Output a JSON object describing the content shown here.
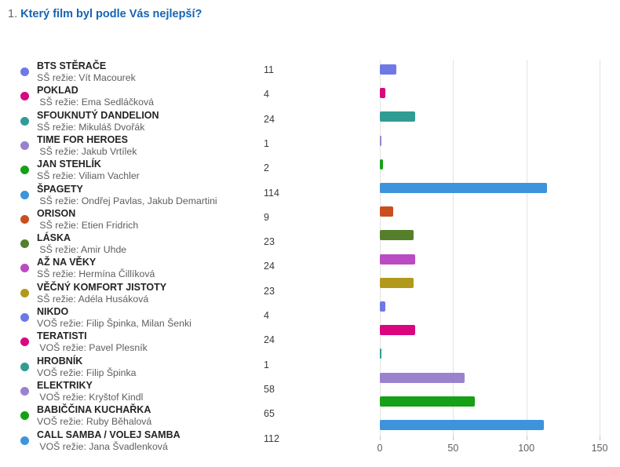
{
  "question": {
    "number": "1. ",
    "text": "Který film byl podle Vás nejlepší?"
  },
  "films": [
    {
      "title": "BTS STĚRAČE",
      "subtitle": "SŠ režie: Vít Macourek",
      "count": "11",
      "color": "#6E79E6"
    },
    {
      "title": "POKLAD",
      "subtitle": " SŠ režie: Ema Sedláčková",
      "count": "4",
      "color": "#D9067F"
    },
    {
      "title": "SFOUKNUTÝ DANDELION",
      "subtitle": "SŠ režie: Mikuláš Dvořák",
      "count": "24",
      "color": "#319C94"
    },
    {
      "title": "TIME FOR HEROES",
      "subtitle": " SŠ režie: Jakub Vrtílek",
      "count": "1",
      "color": "#9B82CE"
    },
    {
      "title": "JAN STEHLÍK",
      "subtitle": "SŠ režie: Viliam Vachler",
      "count": "2",
      "color": "#16A016"
    },
    {
      "title": "ŠPAGETY",
      "subtitle": " SŠ režie: Ondřej Pavlas, Jakub Demartini",
      "count": "114",
      "color": "#3E94DC"
    },
    {
      "title": "ORISON",
      "subtitle": " SŠ režie: Etien Fridrich",
      "count": "9",
      "color": "#CA4F1F"
    },
    {
      "title": "LÁSKA",
      "subtitle": " SŠ režie: Amir Uhde",
      "count": "23",
      "color": "#567F2B"
    },
    {
      "title": "AŽ NA VĚKY",
      "subtitle": "SŠ režie: Hermína Čillíková",
      "count": "24",
      "color": "#B94CC2"
    },
    {
      "title": "VĚČNÝ KOMFORT JISTOTY",
      "subtitle": "SŠ režie: Adéla Husáková",
      "count": "23",
      "color": "#B2991C"
    },
    {
      "title": "NIKDO",
      "subtitle": "VOŠ režie: Filip Špinka, Milan Šenki",
      "count": "4",
      "color": "#6E79E6"
    },
    {
      "title": "TERATISTI",
      "subtitle": " VOŠ režie: Pavel Plesník",
      "count": "24",
      "color": "#D9067F"
    },
    {
      "title": "HROBNÍK",
      "subtitle": "VOŠ režie: Filip Špinka",
      "count": "1",
      "color": "#319C94"
    },
    {
      "title": "ELEKTRIKY",
      "subtitle": " VOŠ režie: Kryštof Kindl",
      "count": "58",
      "color": "#9B82CE"
    },
    {
      "title": "BABIČČINA KUCHAŘKA",
      "subtitle": "VOŠ režie: Ruby Běhalová",
      "count": "65",
      "color": "#16A016"
    },
    {
      "title": "CALL SAMBA / VOLEJ SAMBA",
      "subtitle": " VOŠ režie: Jana Švadlenková",
      "count": "112",
      "color": "#3E94DC"
    }
  ],
  "chart_data": {
    "type": "bar",
    "orientation": "horizontal",
    "title": "Který film byl podle Vás nejlepší?",
    "categories": [
      "BTS STĚRAČE",
      "POKLAD",
      "SFOUKNUTÝ DANDELION",
      "TIME FOR HEROES",
      "JAN STEHLÍK",
      "ŠPAGETY",
      "ORISON",
      "LÁSKA",
      "AŽ NA VĚKY",
      "VĚČNÝ KOMFORT JISTOTY",
      "NIKDO",
      "TERATISTI",
      "HROBNÍK",
      "ELEKTRIKY",
      "BABIČČINA KUCHAŘKA",
      "CALL SAMBA / VOLEJ SAMBA"
    ],
    "values": [
      11,
      4,
      24,
      1,
      2,
      114,
      9,
      23,
      24,
      23,
      4,
      24,
      1,
      58,
      65,
      112
    ],
    "colors": [
      "#6E79E6",
      "#D9067F",
      "#319C94",
      "#9B82CE",
      "#16A016",
      "#3E94DC",
      "#CA4F1F",
      "#567F2B",
      "#B94CC2",
      "#B2991C",
      "#6E79E6",
      "#D9067F",
      "#319C94",
      "#9B82CE",
      "#16A016",
      "#3E94DC"
    ],
    "xlabel": "",
    "ylabel": "",
    "xlim": [
      0,
      150
    ],
    "x_ticks": [
      0,
      50,
      100,
      150
    ],
    "grid": true,
    "legend_position": "left"
  },
  "style": {
    "question_number_color": "#666664",
    "question_text_color": "#1564B5",
    "title_text_color": "#252423",
    "subtitle_text_color": "#605E5C",
    "gridline_color": "#E3E3E1",
    "tick_color": "#C8C6C4"
  }
}
